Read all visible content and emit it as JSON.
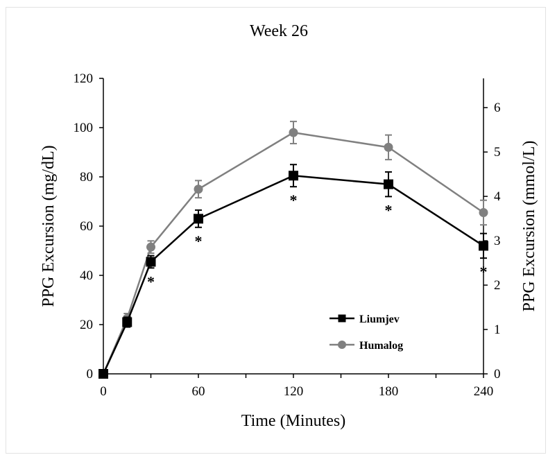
{
  "chart_data": {
    "type": "line",
    "title": "Week 26",
    "xlabel": "Time (Minutes)",
    "ylabel": "PPG Excursion  (mg/dL)",
    "ylabel_right": "PPG Excursion  (mmol/L)",
    "xlim": [
      0,
      240
    ],
    "ylim": [
      0,
      120
    ],
    "ylim_right": [
      0,
      6.66
    ],
    "x_ticks": [
      0,
      60,
      120,
      180,
      240
    ],
    "y_ticks": [
      0,
      20,
      40,
      60,
      80,
      100,
      120
    ],
    "y_ticks_right": [
      0,
      1,
      2,
      3,
      4,
      5,
      6
    ],
    "grid": false,
    "legend_position": "bottom-right",
    "series": [
      {
        "name": "Liumjev",
        "marker": "square",
        "color": "#000000",
        "x": [
          0,
          15,
          30,
          60,
          120,
          180,
          240
        ],
        "y": [
          0,
          21,
          45.5,
          63,
          80.5,
          77,
          52
        ],
        "err": [
          0,
          2,
          2.5,
          3.5,
          4.5,
          5,
          5
        ],
        "significance": [
          "",
          "",
          "*",
          "*",
          "*",
          "*",
          "*"
        ]
      },
      {
        "name": "Humalog",
        "marker": "circle",
        "color": "#808080",
        "x": [
          0,
          15,
          30,
          60,
          120,
          180,
          240
        ],
        "y": [
          0,
          22.5,
          51.5,
          75,
          98,
          92,
          65.5
        ],
        "err": [
          0,
          2,
          2.5,
          3.5,
          4.5,
          5,
          5
        ]
      }
    ]
  }
}
